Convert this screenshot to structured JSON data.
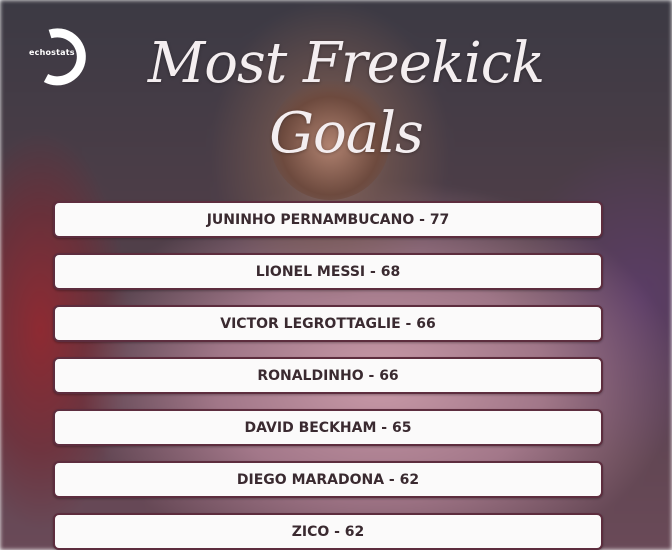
{
  "logo": {
    "text": "echostats"
  },
  "title": {
    "line1": "Most Freekick",
    "line2": "Goals"
  },
  "ranking": [
    {
      "label": "JUNINHO PERNAMBUCANO - 77"
    },
    {
      "label": "LIONEL MESSI - 68"
    },
    {
      "label": "VICTOR LEGROTTAGLIE - 66"
    },
    {
      "label": "RONALDINHO - 66"
    },
    {
      "label": "DAVID BECKHAM - 65"
    },
    {
      "label": "DIEGO MARADONA - 62"
    },
    {
      "label": "ZICO - 62"
    }
  ],
  "colors": {
    "border": "#5d2d3e",
    "row_bg": "#fbfafa",
    "text": "#3a2a30"
  }
}
